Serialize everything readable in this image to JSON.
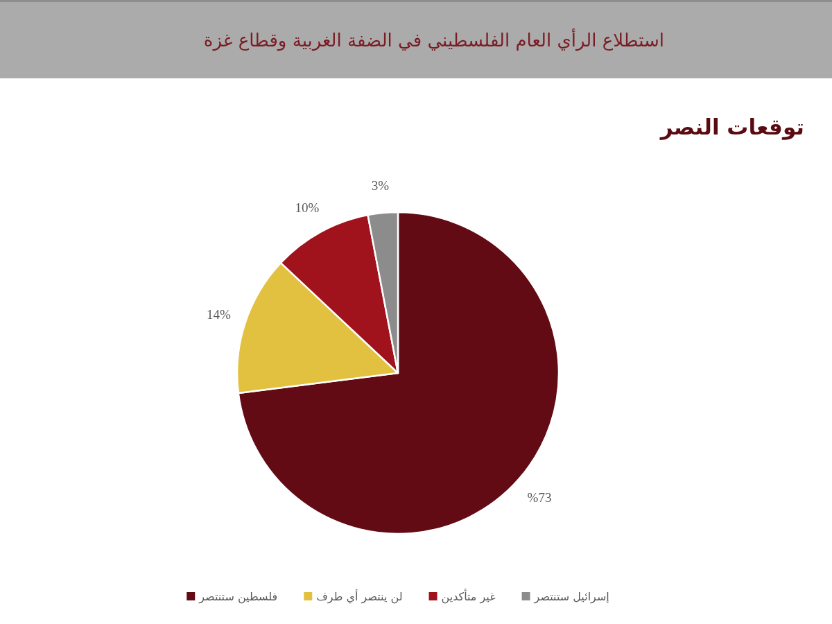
{
  "chart_data": {
    "type": "pie",
    "title": "استطلاع الرأي العام الفلسطيني في الضفة الغربية وقطاع غزة",
    "subtitle": "توقعات النصر",
    "categories": [
      "فلسطين ستنتصر",
      "لن ينتصر أي طرف",
      "غير متأكدين",
      "إسرائيل ستنتصر"
    ],
    "values": [
      73,
      14,
      10,
      3
    ],
    "colors": [
      "#620b14",
      "#e3c140",
      "#a0121c",
      "#8c8c8c"
    ],
    "value_labels": [
      "%73",
      "14%",
      "10%",
      "3%"
    ],
    "legend": "bottom"
  }
}
